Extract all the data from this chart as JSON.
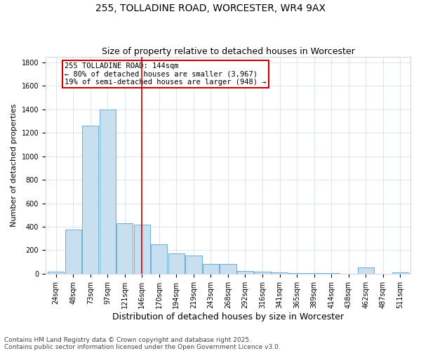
{
  "title": "255, TOLLADINE ROAD, WORCESTER, WR4 9AX",
  "subtitle": "Size of property relative to detached houses in Worcester",
  "xlabel": "Distribution of detached houses by size in Worcester",
  "ylabel": "Number of detached properties",
  "footer_line1": "Contains HM Land Registry data © Crown copyright and database right 2025.",
  "footer_line2": "Contains public sector information licensed under the Open Government Licence v3.0.",
  "categories": [
    "24sqm",
    "48sqm",
    "73sqm",
    "97sqm",
    "121sqm",
    "146sqm",
    "170sqm",
    "194sqm",
    "219sqm",
    "243sqm",
    "268sqm",
    "292sqm",
    "316sqm",
    "341sqm",
    "365sqm",
    "389sqm",
    "414sqm",
    "438sqm",
    "462sqm",
    "487sqm",
    "511sqm"
  ],
  "values": [
    20,
    375,
    1260,
    1400,
    430,
    420,
    250,
    175,
    155,
    85,
    80,
    25,
    20,
    10,
    5,
    3,
    3,
    2,
    50,
    2,
    10
  ],
  "bar_color": "#c8dff0",
  "bar_edge_color": "#6aaed6",
  "vline_index": 5,
  "vline_color": "#cc0000",
  "annotation_text": "255 TOLLADINE ROAD: 144sqm\n← 80% of detached houses are smaller (3,967)\n19% of semi-detached houses are larger (948) →",
  "annotation_box_color": "#cc0000",
  "ylim": [
    0,
    1850
  ],
  "yticks": [
    0,
    200,
    400,
    600,
    800,
    1000,
    1200,
    1400,
    1600,
    1800
  ],
  "background_color": "#ffffff",
  "grid_color": "#d0d8e8",
  "title_fontsize": 10,
  "subtitle_fontsize": 9,
  "xlabel_fontsize": 9,
  "ylabel_fontsize": 8,
  "tick_fontsize": 7,
  "annotation_fontsize": 7.5,
  "footer_fontsize": 6.5
}
